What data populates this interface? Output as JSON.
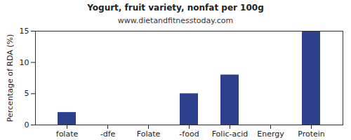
{
  "chart_data": {
    "type": "bar",
    "title": "Yogurt, fruit variety, nonfat per 100g",
    "subtitle": "www.dietandfitnesstoday.com",
    "y_label": "Percentage of RDA (%)",
    "categories": [
      "folate",
      "-dfe",
      "Folate",
      "-food",
      "Folic-acid",
      "Energy",
      "Protein"
    ],
    "values": [
      2,
      0,
      0,
      5,
      8,
      0,
      15
    ],
    "color": "#2b3f8c",
    "ylim": [
      0,
      15
    ],
    "yticks": [
      0,
      5,
      10,
      15
    ],
    "grid": false
  }
}
